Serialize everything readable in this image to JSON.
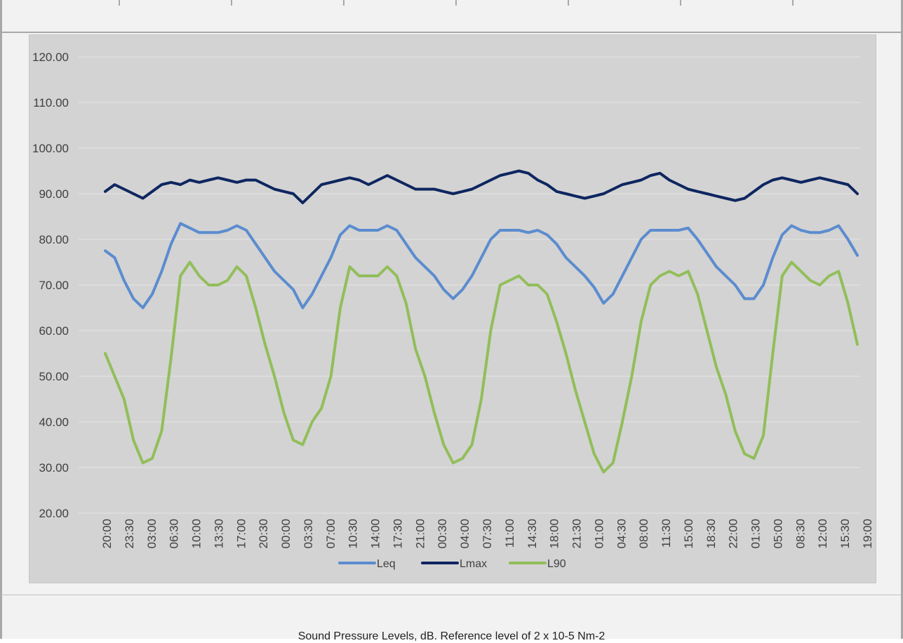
{
  "caption": "Sound Pressure Levels, dB.  Reference level of 2 x 10-5 Nm-2",
  "chart_data": {
    "type": "line",
    "ylim": [
      20,
      120
    ],
    "yticks": [
      "20.00",
      "30.00",
      "40.00",
      "50.00",
      "60.00",
      "70.00",
      "80.00",
      "90.00",
      "100.00",
      "110.00",
      "120.00"
    ],
    "xtick_labels": [
      "20:00",
      "23:30",
      "03:00",
      "06:30",
      "10:00",
      "13:30",
      "17:00",
      "20:30",
      "00:00",
      "03:30",
      "07:00",
      "10:30",
      "14:00",
      "17:30",
      "21:00",
      "00:30",
      "04:00",
      "07:30",
      "11:00",
      "14:30",
      "18:00",
      "21:30",
      "01:00",
      "04:30",
      "08:00",
      "11:30",
      "15:00",
      "18:30",
      "22:00",
      "01:30",
      "05:00",
      "08:30",
      "12:00",
      "15:30",
      "19:00"
    ],
    "grid": true,
    "legend_position": "bottom",
    "series": [
      {
        "name": "Leq",
        "color": "#5b8ccf",
        "values": [
          77.5,
          76.0,
          71.0,
          67.0,
          65.0,
          68.0,
          73.0,
          79.0,
          83.5,
          82.5,
          81.5,
          81.5,
          81.5,
          82.0,
          83.0,
          82.0,
          79.0,
          76.0,
          73.0,
          71.0,
          69.0,
          65.0,
          68.0,
          72.0,
          76.0,
          81.0,
          83.0,
          82.0,
          82.0,
          82.0,
          83.0,
          82.0,
          79.0,
          76.0,
          74.0,
          72.0,
          69.0,
          67.0,
          69.0,
          72.0,
          76.0,
          80.0,
          82.0,
          82.0,
          82.0,
          81.5,
          82.0,
          81.0,
          79.0,
          76.0,
          74.0,
          72.0,
          69.5,
          66.0,
          68.0,
          72.0,
          76.0,
          80.0,
          82.0,
          82.0,
          82.0,
          82.0,
          82.5,
          80.0,
          77.0,
          74.0,
          72.0,
          70.0,
          67.0,
          67.0,
          70.0,
          76.0,
          81.0,
          83.0,
          82.0,
          81.5,
          81.5,
          82.0,
          83.0,
          80.0,
          76.5
        ]
      },
      {
        "name": "Lmax",
        "color": "#0e2660",
        "values": [
          90.5,
          92.0,
          91.0,
          90.0,
          89.0,
          90.5,
          92.0,
          92.5,
          92.0,
          93.0,
          92.5,
          93.0,
          93.5,
          93.0,
          92.5,
          93.0,
          93.0,
          92.0,
          91.0,
          90.5,
          90.0,
          88.0,
          90.0,
          92.0,
          92.5,
          93.0,
          93.5,
          93.0,
          92.0,
          93.0,
          94.0,
          93.0,
          92.0,
          91.0,
          91.0,
          91.0,
          90.5,
          90.0,
          90.5,
          91.0,
          92.0,
          93.0,
          94.0,
          94.5,
          95.0,
          94.5,
          93.0,
          92.0,
          90.5,
          90.0,
          89.5,
          89.0,
          89.5,
          90.0,
          91.0,
          92.0,
          92.5,
          93.0,
          94.0,
          94.5,
          93.0,
          92.0,
          91.0,
          90.5,
          90.0,
          89.5,
          89.0,
          88.5,
          89.0,
          90.5,
          92.0,
          93.0,
          93.5,
          93.0,
          92.5,
          93.0,
          93.5,
          93.0,
          92.5,
          92.0,
          90.0
        ]
      },
      {
        "name": "L90",
        "color": "#92be5a",
        "values": [
          55.0,
          50.0,
          45.0,
          36.0,
          31.0,
          32.0,
          38.0,
          54.0,
          72.0,
          75.0,
          72.0,
          70.0,
          70.0,
          71.0,
          74.0,
          72.0,
          65.0,
          57.0,
          50.0,
          42.0,
          36.0,
          35.0,
          40.0,
          43.0,
          50.0,
          65.0,
          74.0,
          72.0,
          72.0,
          72.0,
          74.0,
          72.0,
          66.0,
          56.0,
          50.0,
          42.0,
          35.0,
          31.0,
          32.0,
          35.0,
          45.0,
          60.0,
          70.0,
          71.0,
          72.0,
          70.0,
          70.0,
          68.0,
          62.0,
          55.0,
          47.0,
          40.0,
          33.0,
          29.0,
          31.0,
          40.0,
          50.0,
          62.0,
          70.0,
          72.0,
          73.0,
          72.0,
          73.0,
          68.0,
          60.0,
          52.0,
          46.0,
          38.0,
          33.0,
          32.0,
          37.0,
          55.0,
          72.0,
          75.0,
          73.0,
          71.0,
          70.0,
          72.0,
          73.0,
          66.0,
          57.0
        ]
      }
    ]
  }
}
